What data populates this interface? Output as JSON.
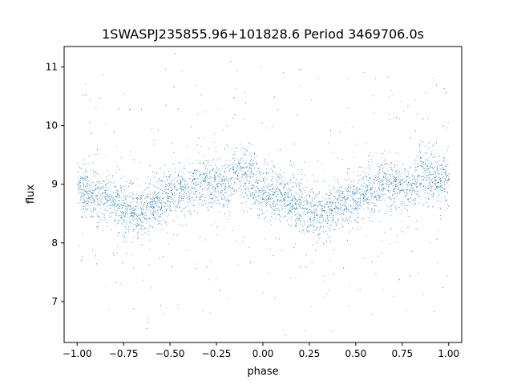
{
  "chart_data": {
    "type": "scatter",
    "title": "1SWASPJ235855.96+101828.6 Period 3469706.0s",
    "xlabel": "phase",
    "ylabel": "flux",
    "xlim": [
      -1.07,
      1.07
    ],
    "ylim": [
      6.3,
      11.35
    ],
    "xticks": [
      -1.0,
      -0.75,
      -0.5,
      -0.25,
      0.0,
      0.25,
      0.5,
      0.75,
      1.0
    ],
    "xtick_labels": [
      "−1.00",
      "−0.75",
      "−0.50",
      "−0.25",
      "0.00",
      "0.25",
      "0.50",
      "0.75",
      "1.00"
    ],
    "yticks": [
      7,
      8,
      9,
      10,
      11
    ],
    "ytick_labels": [
      "7",
      "8",
      "9",
      "10",
      "11"
    ],
    "grid": false,
    "marker_color": "#1f77b4",
    "series": [
      {
        "phase_profile": {
          "x": [
            -1.0,
            -0.95,
            -0.9,
            -0.85,
            -0.8,
            -0.75,
            -0.7,
            -0.65,
            -0.6,
            -0.55,
            -0.5,
            -0.45,
            -0.4,
            -0.35,
            -0.3,
            -0.25,
            -0.2,
            -0.15,
            -0.1,
            -0.05,
            0.0,
            0.05,
            0.1,
            0.15,
            0.2,
            0.25,
            0.3,
            0.35,
            0.4,
            0.45,
            0.5,
            0.55,
            0.6,
            0.65,
            0.7,
            0.75,
            0.8,
            0.85,
            0.9,
            0.95,
            1.0
          ],
          "y": [
            9.0,
            8.85,
            8.8,
            8.75,
            8.7,
            8.55,
            8.5,
            8.55,
            8.65,
            8.7,
            8.8,
            8.85,
            8.95,
            9.05,
            9.0,
            8.95,
            8.95,
            9.2,
            9.2,
            9.05,
            8.9,
            8.85,
            8.8,
            8.7,
            8.65,
            8.55,
            8.5,
            8.55,
            8.65,
            8.7,
            8.75,
            8.85,
            8.9,
            9.05,
            9.0,
            8.95,
            8.95,
            9.2,
            9.2,
            9.1,
            9.05
          ]
        }
      }
    ]
  }
}
